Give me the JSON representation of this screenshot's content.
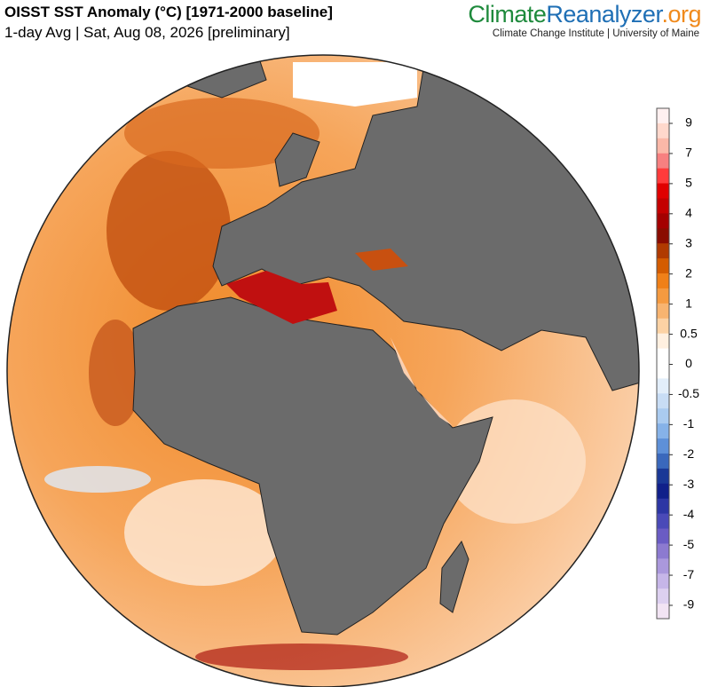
{
  "header": {
    "title": "OISST SST Anomaly (°C) [1971-2000 baseline]",
    "subtitle": "1-day Avg | Sat, Aug 08, 2026 [preliminary]"
  },
  "brand": {
    "parts": [
      "Climate",
      "Reanalyzer",
      ".org"
    ],
    "credit": "Climate Change Institute | University of Maine"
  },
  "colorbar": {
    "ticks": [
      9,
      7,
      5,
      4,
      3,
      2,
      1,
      0.5,
      0,
      -0.5,
      -1,
      -2,
      -3,
      -4,
      -5,
      -7,
      -9
    ],
    "colors": [
      "#fff0f0",
      "#ffd8cc",
      "#fbb8a8",
      "#f78080",
      "#ff3b3b",
      "#e00000",
      "#c40000",
      "#a40000",
      "#8a0c00",
      "#b03a00",
      "#d45c00",
      "#f08018",
      "#f59a40",
      "#f8b470",
      "#fcd2a4",
      "#fff0e0",
      "#ffffff",
      "#ffffff",
      "#e2eefa",
      "#c8ddf5",
      "#aacbf0",
      "#86b2e8",
      "#5e90d8",
      "#3a68bc",
      "#1a3896",
      "#10208a",
      "#2c36a4",
      "#4a4ab8",
      "#6a5cc4",
      "#8c7ad0",
      "#aa98dc",
      "#c6b6e8",
      "#ddd0f0",
      "#f2e4f4"
    ]
  }
}
